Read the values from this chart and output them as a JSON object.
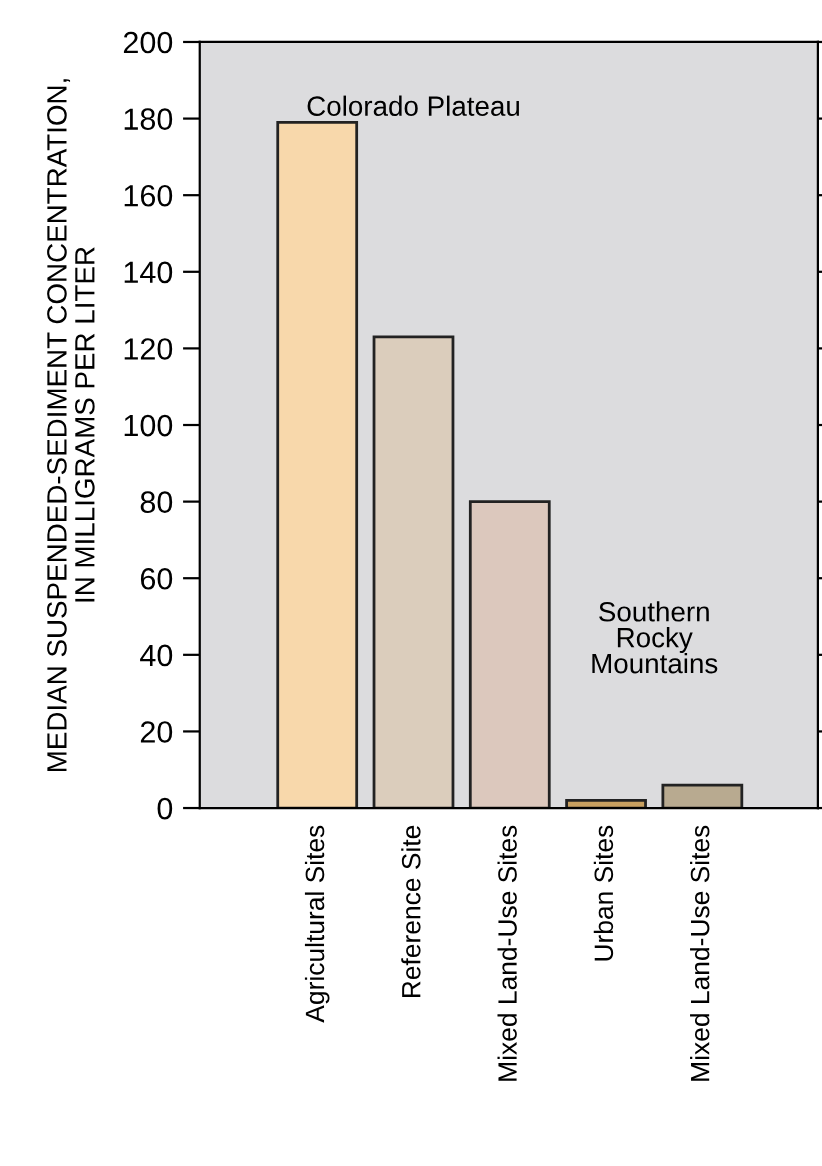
{
  "chart_data": {
    "type": "bar",
    "ylabel": "MEDIAN SUSPENDED-SEDIMENT CONCENTRATION,\nIN MILLIGRAMS PER LITER",
    "categories": [
      "Agricultural Sites",
      "Reference Site",
      "Mixed Land-Use Sites",
      "Urban Sites",
      "Mixed Land-Use Sites"
    ],
    "values": [
      179,
      123,
      80,
      2,
      6
    ],
    "colors": [
      "#f8d8ab",
      "#dbcdbc",
      "#dcc8bd",
      "#c8a060",
      "#b8aa90"
    ],
    "ylim": [
      0,
      200
    ],
    "yticks": [
      0,
      20,
      40,
      60,
      80,
      100,
      120,
      140,
      160,
      180,
      200
    ],
    "annotations": [
      "Colorado Plateau",
      "Southern\nRocky\nMountains"
    ],
    "grid": false
  }
}
